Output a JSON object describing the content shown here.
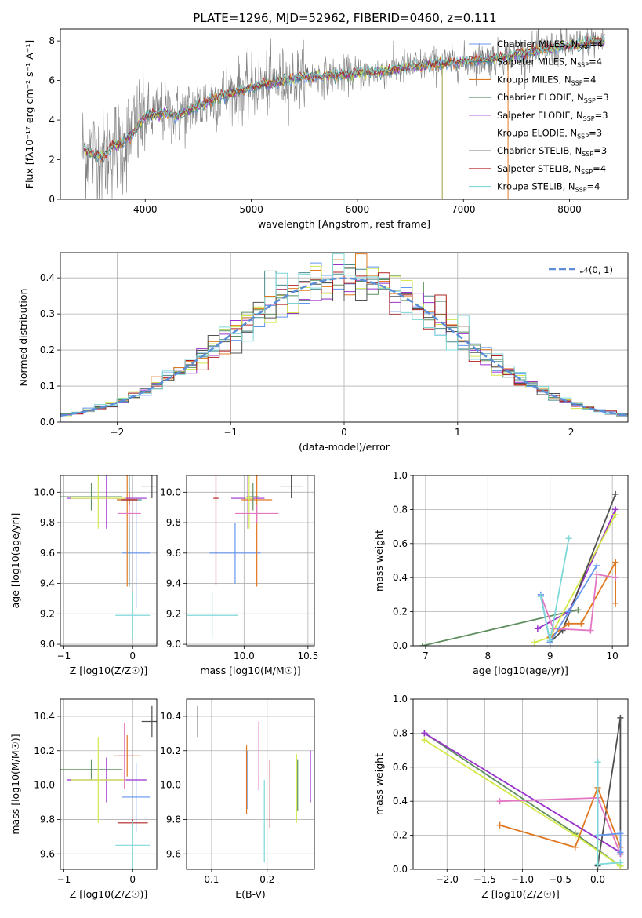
{
  "title": "PLATE=1296, MJD=52962, FIBERID=0460, z=0.111",
  "chart_data": [
    {
      "type": "line",
      "id": "spectrum",
      "xlabel": "wavelength [Angstrom, rest frame]",
      "ylabel": "Flux [fλ10⁻¹⁷ erg cm⁻² s⁻¹ A⁻¹]",
      "xlim": [
        3200,
        8550
      ],
      "ylim": [
        0,
        8.6
      ],
      "xticks": [
        4000,
        5000,
        6000,
        7000,
        8000
      ],
      "yticks": [
        0,
        2,
        4,
        6,
        8
      ],
      "legend_position": "top-right",
      "series": [
        {
          "name": "Chabrier MILES, N_SSP=4",
          "color": "#6495ed"
        },
        {
          "name": "Salpeter MILES, N_SSP=4",
          "color": "#4a8a8a"
        },
        {
          "name": "Kroupa MILES, N_SSP=4",
          "color": "#e07820"
        },
        {
          "name": "Chabrier ELODIE, N_SSP=3",
          "color": "#5f8f5f"
        },
        {
          "name": "Salpeter ELODIE, N_SSP=3",
          "color": "#9932cc"
        },
        {
          "name": "Kroupa ELODIE, N_SSP=3",
          "color": "#d4e84a"
        },
        {
          "name": "Chabrier STELIB, N_SSP=3",
          "color": "#505050"
        },
        {
          "name": "Salpeter STELIB, N_SSP=4",
          "color": "#b22222"
        },
        {
          "name": "Kroupa STELIB, N_SSP=4",
          "color": "#7fd8d8"
        }
      ],
      "model_flux_points": {
        "x": [
          3400,
          3500,
          3600,
          3700,
          3800,
          3900,
          4000,
          4100,
          4200,
          4300,
          4500,
          4700,
          4900,
          5100,
          5300,
          5500,
          5700,
          5900,
          6100,
          6300,
          6500,
          6700,
          6900,
          7100,
          7300,
          7500,
          7700,
          7900,
          8100,
          8300
        ],
        "y": [
          2.6,
          2.3,
          2.1,
          2.7,
          2.9,
          3.4,
          4.2,
          4.3,
          4.4,
          4.2,
          4.7,
          5.2,
          5.5,
          5.8,
          6.0,
          6.2,
          6.2,
          6.3,
          6.4,
          6.5,
          6.7,
          6.8,
          6.9,
          7.0,
          7.1,
          7.3,
          7.5,
          7.7,
          7.8,
          8.0
        ]
      }
    },
    {
      "type": "histogram",
      "id": "residuals",
      "xlabel": "(data-model)/error",
      "ylabel": "Normed distribution",
      "xlim": [
        -2.5,
        2.5
      ],
      "ylim": [
        0,
        0.47
      ],
      "xticks": [
        -2,
        -1,
        0,
        1,
        2
      ],
      "yticks": [
        0.0,
        0.1,
        0.2,
        0.3,
        0.4
      ],
      "grid": true,
      "legend_position": "top-right",
      "reference_curve": {
        "name": "N(0,1)",
        "color": "#5b8ed6",
        "style": "dashed"
      },
      "bin_width": 0.1
    },
    {
      "type": "scatter",
      "id": "z-age",
      "xlabel": "Z [log10(Z/Z☉)]",
      "ylabel": "age  [log10(age/yr)]",
      "xlim": [
        -1.05,
        0.35
      ],
      "ylim": [
        8.99,
        10.11
      ],
      "xticks": [
        -1,
        0
      ],
      "yticks": [
        9.0,
        9.2,
        9.4,
        9.6,
        9.8,
        10.0
      ],
      "grid": true,
      "points": [
        {
          "x": 0.05,
          "y": 9.6,
          "xerr": 0.2,
          "yerr": 0.36,
          "color": "#6495ed"
        },
        {
          "x": -0.05,
          "y": 9.95,
          "xerr": 0.18,
          "yerr": 0.57,
          "color": "#4a8a8a"
        },
        {
          "x": -0.08,
          "y": 9.95,
          "xerr": 0.15,
          "yerr": 0.57,
          "color": "#e07820"
        },
        {
          "x": -0.6,
          "y": 9.97,
          "xerr": 0.45,
          "yerr": 0.09,
          "color": "#5f8f5f"
        },
        {
          "x": -0.38,
          "y": 9.96,
          "xerr": 0.58,
          "yerr": 0.2,
          "color": "#9932cc"
        },
        {
          "x": -0.5,
          "y": 9.96,
          "xerr": 0.4,
          "yerr": 0.2,
          "color": "#d4e84a"
        },
        {
          "x": 0.28,
          "y": 10.04,
          "xerr": 0.15,
          "yerr": 0.08,
          "color": "#505050"
        },
        {
          "x": -0.05,
          "y": 9.95,
          "xerr": 0.12,
          "yerr": 0.05,
          "color": "#b22222"
        },
        {
          "x": 0.0,
          "y": 9.19,
          "xerr": 0.25,
          "yerr": 0.15,
          "color": "#7fd8d8"
        },
        {
          "x": -0.05,
          "y": 9.86,
          "xerr": 0.17,
          "yerr": 0.06,
          "color": "#e377c2"
        }
      ]
    },
    {
      "type": "scatter",
      "id": "mass-age",
      "xlabel": "mass [log10(M/M☉)]",
      "ylabel": "",
      "xlim": [
        9.55,
        10.55
      ],
      "ylim": [
        8.99,
        10.11
      ],
      "xticks": [
        10.0,
        10.5
      ],
      "yticks": [
        9.0,
        9.2,
        9.4,
        9.6,
        9.8,
        10.0
      ],
      "grid": true,
      "points": [
        {
          "x": 9.93,
          "y": 9.6,
          "xerr": 0.2,
          "yerr": 0.2,
          "color": "#6495ed"
        },
        {
          "x": 10.1,
          "y": 9.95,
          "xerr": 0.12,
          "yerr": 0.57,
          "color": "#e07820"
        },
        {
          "x": 10.07,
          "y": 9.97,
          "xerr": 0.05,
          "yerr": 0.09,
          "color": "#5f8f5f"
        },
        {
          "x": 10.03,
          "y": 9.96,
          "xerr": 0.13,
          "yerr": 0.2,
          "color": "#9932cc"
        },
        {
          "x": 10.04,
          "y": 9.96,
          "xerr": 0.03,
          "yerr": 0.2,
          "color": "#d4e84a"
        },
        {
          "x": 10.37,
          "y": 10.04,
          "xerr": 0.09,
          "yerr": 0.08,
          "color": "#505050"
        },
        {
          "x": 9.78,
          "y": 9.96,
          "xerr": 0.02,
          "yerr": 0.57,
          "color": "#b22222"
        },
        {
          "x": 9.75,
          "y": 9.19,
          "xerr": 0.2,
          "yerr": 0.15,
          "color": "#7fd8d8"
        },
        {
          "x": 10.1,
          "y": 9.86,
          "xerr": 0.17,
          "yerr": 0.06,
          "color": "#e377c2"
        }
      ]
    },
    {
      "type": "line",
      "id": "age-weight",
      "xlabel": "age  [log10(age/yr)]",
      "ylabel": "mass weight",
      "xlim": [
        6.8,
        10.25
      ],
      "ylim": [
        0,
        1
      ],
      "xticks": [
        7,
        8,
        9,
        10
      ],
      "yticks": [
        0.0,
        0.2,
        0.4,
        0.6,
        0.8,
        1.0
      ],
      "grid": true,
      "series": [
        {
          "color": "#5f8f5f",
          "x": [
            6.95,
            9.3,
            9.45
          ],
          "y": [
            0.0,
            0.2,
            0.21
          ]
        },
        {
          "color": "#9932cc",
          "x": [
            8.8,
            9.3,
            10.05
          ],
          "y": [
            0.1,
            0.2,
            0.8
          ]
        },
        {
          "color": "#d4e84a",
          "x": [
            8.75,
            9.0,
            10.05
          ],
          "y": [
            0.02,
            0.05,
            0.77
          ]
        },
        {
          "color": "#505050",
          "x": [
            9.0,
            9.2,
            10.05
          ],
          "y": [
            0.02,
            0.09,
            0.89
          ]
        },
        {
          "color": "#e07820",
          "x": [
            9.0,
            9.3,
            9.5,
            10.05,
            10.05,
            10.05
          ],
          "y": [
            0.05,
            0.13,
            0.13,
            0.49,
            0.4,
            0.25
          ]
        },
        {
          "color": "#e377c2",
          "x": [
            8.85,
            9.05,
            9.65,
            9.75,
            10.05
          ],
          "y": [
            0.3,
            0.1,
            0.09,
            0.42,
            0.4
          ]
        },
        {
          "color": "#6495ed",
          "x": [
            8.85,
            9.0,
            9.3,
            9.75
          ],
          "y": [
            0.3,
            0.02,
            0.2,
            0.47
          ]
        },
        {
          "color": "#7fd8d8",
          "x": [
            8.85,
            9.0,
            9.3
          ],
          "y": [
            0.29,
            0.03,
            0.63
          ]
        }
      ]
    },
    {
      "type": "scatter",
      "id": "z-mass",
      "xlabel": "Z [log10(Z/Z☉)]",
      "ylabel": "mass [log10(M/M☉)]",
      "xlim": [
        -1.05,
        0.35
      ],
      "ylim": [
        9.51,
        10.5
      ],
      "xticks": [
        -1,
        0
      ],
      "yticks": [
        9.6,
        9.8,
        10.0,
        10.2,
        10.4
      ],
      "grid": true,
      "points": [
        {
          "x": 0.05,
          "y": 9.93,
          "xerr": 0.2,
          "yerr": 0.2,
          "color": "#6495ed"
        },
        {
          "x": -0.08,
          "y": 10.17,
          "xerr": 0.2,
          "yerr": 0.12,
          "color": "#e07820"
        },
        {
          "x": -0.6,
          "y": 10.09,
          "xerr": 0.45,
          "yerr": 0.06,
          "color": "#5f8f5f"
        },
        {
          "x": -0.38,
          "y": 10.03,
          "xerr": 0.58,
          "yerr": 0.13,
          "color": "#9932cc"
        },
        {
          "x": -0.5,
          "y": 10.03,
          "xerr": 0.4,
          "yerr": 0.25,
          "color": "#d4e84a"
        },
        {
          "x": 0.28,
          "y": 10.37,
          "xerr": 0.15,
          "yerr": 0.09,
          "color": "#505050"
        },
        {
          "x": 0.0,
          "y": 9.78,
          "xerr": 0.22,
          "yerr": 0.02,
          "color": "#b22222"
        },
        {
          "x": 0.0,
          "y": 9.65,
          "xerr": 0.25,
          "yerr": 0.14,
          "color": "#7fd8d8"
        },
        {
          "x": -0.12,
          "y": 10.17,
          "xerr": 0.1,
          "yerr": 0.19,
          "color": "#e377c2"
        }
      ]
    },
    {
      "type": "scatter",
      "id": "ebv-mass",
      "xlabel": "E(B-V)",
      "ylabel": "",
      "xlim": [
        0.055,
        0.285
      ],
      "ylim": [
        9.51,
        10.5
      ],
      "xticks": [
        0.1,
        0.2
      ],
      "yticks": [
        9.6,
        9.8,
        10.0,
        10.2,
        10.4
      ],
      "grid": true,
      "points": [
        {
          "x": 0.165,
          "y": 10.03,
          "xerr": 0.0,
          "yerr": 0.17,
          "color": "#6495ed"
        },
        {
          "x": 0.163,
          "y": 10.03,
          "xerr": 0.0,
          "yerr": 0.2,
          "color": "#e07820"
        },
        {
          "x": 0.255,
          "y": 10.0,
          "xerr": 0.0,
          "yerr": 0.15,
          "color": "#5f8f5f"
        },
        {
          "x": 0.278,
          "y": 10.05,
          "xerr": 0.0,
          "yerr": 0.15,
          "color": "#9932cc"
        },
        {
          "x": 0.253,
          "y": 9.98,
          "xerr": 0.0,
          "yerr": 0.2,
          "color": "#d4e84a"
        },
        {
          "x": 0.075,
          "y": 10.37,
          "xerr": 0.0,
          "yerr": 0.09,
          "color": "#505050"
        },
        {
          "x": 0.205,
          "y": 9.95,
          "xerr": 0.0,
          "yerr": 0.2,
          "color": "#b22222"
        },
        {
          "x": 0.195,
          "y": 9.79,
          "xerr": 0.0,
          "yerr": 0.24,
          "color": "#7fd8d8"
        },
        {
          "x": 0.185,
          "y": 10.17,
          "xerr": 0.0,
          "yerr": 0.2,
          "color": "#e377c2"
        }
      ]
    },
    {
      "type": "line",
      "id": "z-weight",
      "xlabel": "Z [log10(Z/Z☉)]",
      "ylabel": "mass weight",
      "xlim": [
        -2.45,
        0.4
      ],
      "ylim": [
        0,
        1
      ],
      "xticks": [
        -2.0,
        -1.5,
        -1.0,
        -0.5,
        0.0
      ],
      "yticks": [
        0.0,
        0.2,
        0.4,
        0.6,
        0.8,
        1.0
      ],
      "grid": true,
      "series": [
        {
          "color": "#5f8f5f",
          "x": [
            -2.3,
            -0.3,
            0.3
          ],
          "y": [
            0.8,
            0.21,
            0.02
          ]
        },
        {
          "color": "#9932cc",
          "x": [
            -2.3,
            0.3,
            0.3
          ],
          "y": [
            0.8,
            0.1,
            0.09
          ]
        },
        {
          "color": "#d4e84a",
          "x": [
            -2.3,
            -0.3,
            0.3
          ],
          "y": [
            0.76,
            0.2,
            0.02
          ]
        },
        {
          "color": "#505050",
          "x": [
            0.0,
            0.3,
            0.3
          ],
          "y": [
            0.02,
            0.89,
            0.09
          ]
        },
        {
          "color": "#e07820",
          "x": [
            -1.3,
            -0.3,
            0.0,
            0.3
          ],
          "y": [
            0.26,
            0.13,
            0.48,
            0.13
          ]
        },
        {
          "color": "#e377c2",
          "x": [
            -1.3,
            0.0,
            0.3
          ],
          "y": [
            0.4,
            0.42,
            0.09
          ]
        },
        {
          "color": "#6495ed",
          "x": [
            0.0,
            0.0,
            0.3,
            0.3
          ],
          "y": [
            0.63,
            0.2,
            0.21,
            0.1
          ]
        },
        {
          "color": "#7fd8d8",
          "x": [
            0.0,
            0.0,
            0.3
          ],
          "y": [
            0.63,
            0.03,
            0.04
          ]
        }
      ]
    }
  ]
}
